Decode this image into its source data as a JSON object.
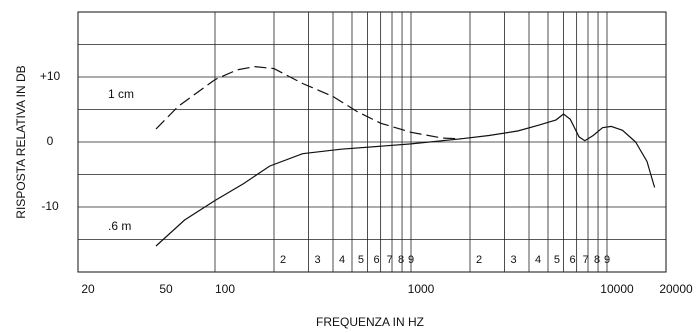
{
  "chart_data": {
    "type": "line",
    "x_label": "FREQUENZA IN HZ",
    "y_label": "RISPOSTA RELATIVA IN DB",
    "log_x": true,
    "xlim": [
      20,
      20000
    ],
    "ylim": [
      -20,
      20
    ],
    "xticks": [
      20,
      50,
      100,
      1000,
      10000,
      20000
    ],
    "xminor": [
      {
        "value": 200,
        "label": "2"
      },
      {
        "value": 300,
        "label": "3"
      },
      {
        "value": 400,
        "label": "4"
      },
      {
        "value": 500,
        "label": "5"
      },
      {
        "value": 600,
        "label": "6"
      },
      {
        "value": 700,
        "label": "7"
      },
      {
        "value": 800,
        "label": "8"
      },
      {
        "value": 900,
        "label": "9"
      },
      {
        "value": 2000,
        "label": "2"
      },
      {
        "value": 3000,
        "label": "3"
      },
      {
        "value": 4000,
        "label": "4"
      },
      {
        "value": 5000,
        "label": "5"
      },
      {
        "value": 6000,
        "label": "6"
      },
      {
        "value": 7000,
        "label": "7"
      },
      {
        "value": 8000,
        "label": "8"
      },
      {
        "value": 9000,
        "label": "9"
      }
    ],
    "xgrid": [
      100,
      1000,
      10000
    ],
    "yticks": [
      -10,
      0,
      {
        "value": 10,
        "label": "+10"
      }
    ],
    "ygrid": [
      -15,
      -10,
      -5,
      0,
      5,
      10,
      15
    ],
    "series": [
      {
        "name": "1 cm",
        "color": "#111111",
        "dash": true,
        "x": [
          50,
          65,
          100,
          130,
          160,
          200,
          280,
          400,
          530,
          700,
          1000,
          1450,
          1800
        ],
        "values": [
          2,
          5.5,
          9.6,
          11.1,
          11.6,
          11.3,
          9,
          7,
          4.7,
          2.9,
          1.5,
          0.6,
          0.5
        ]
      },
      {
        "name": ".6 m",
        "color": "#111111",
        "dash": false,
        "x": [
          50,
          70,
          100,
          140,
          190,
          280,
          440,
          1000,
          1800,
          2500,
          3500,
          4500,
          5500,
          6000,
          6500,
          7200,
          7700,
          8500,
          9500,
          10500,
          12000,
          14000,
          16000,
          17500
        ],
        "values": [
          -16,
          -12,
          -9,
          -6.4,
          -3.7,
          -1.8,
          -1.1,
          -0.3,
          0.5,
          1,
          1.7,
          2.6,
          3.4,
          4.3,
          3.5,
          0.8,
          0.2,
          1,
          2.2,
          2.4,
          1.8,
          0,
          -3,
          -7
        ]
      }
    ]
  }
}
